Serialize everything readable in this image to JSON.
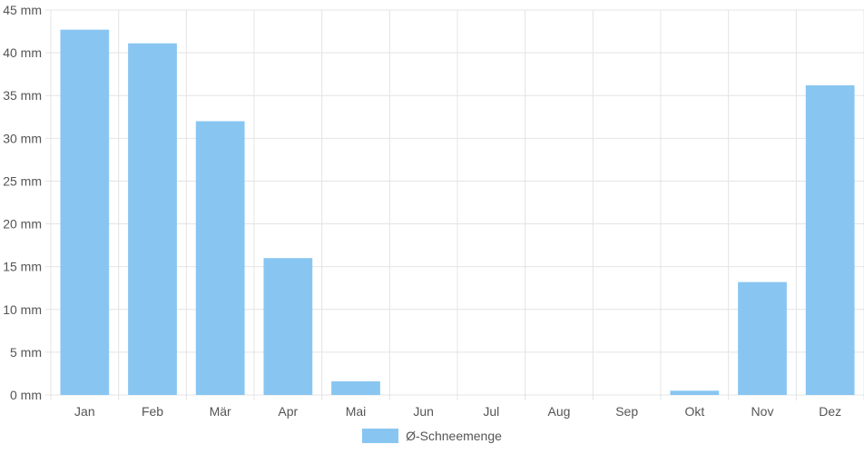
{
  "chart_data": {
    "type": "bar",
    "categories": [
      "Jan",
      "Feb",
      "Mär",
      "Apr",
      "Mai",
      "Jun",
      "Jul",
      "Aug",
      "Sep",
      "Okt",
      "Nov",
      "Dez"
    ],
    "series": [
      {
        "name": "Ø-Schneemenge",
        "values": [
          42.7,
          41.1,
          32.0,
          16.0,
          1.6,
          0,
          0,
          0,
          0,
          0.5,
          13.2,
          36.2
        ],
        "color": "#88c6f1"
      }
    ],
    "title": "",
    "xlabel": "",
    "ylabel": "",
    "ylim": [
      0,
      45
    ],
    "yticks": [
      {
        "value": 0,
        "label": "0 mm"
      },
      {
        "value": 5,
        "label": "5 mm"
      },
      {
        "value": 10,
        "label": "10 mm"
      },
      {
        "value": 15,
        "label": "15 mm"
      },
      {
        "value": 20,
        "label": "20 mm"
      },
      {
        "value": 25,
        "label": "25 mm"
      },
      {
        "value": 30,
        "label": "30 mm"
      },
      {
        "value": 35,
        "label": "35 mm"
      },
      {
        "value": 40,
        "label": "40 mm"
      },
      {
        "value": 45,
        "label": "45 mm"
      }
    ],
    "grid": true,
    "legend_position": "bottom"
  }
}
